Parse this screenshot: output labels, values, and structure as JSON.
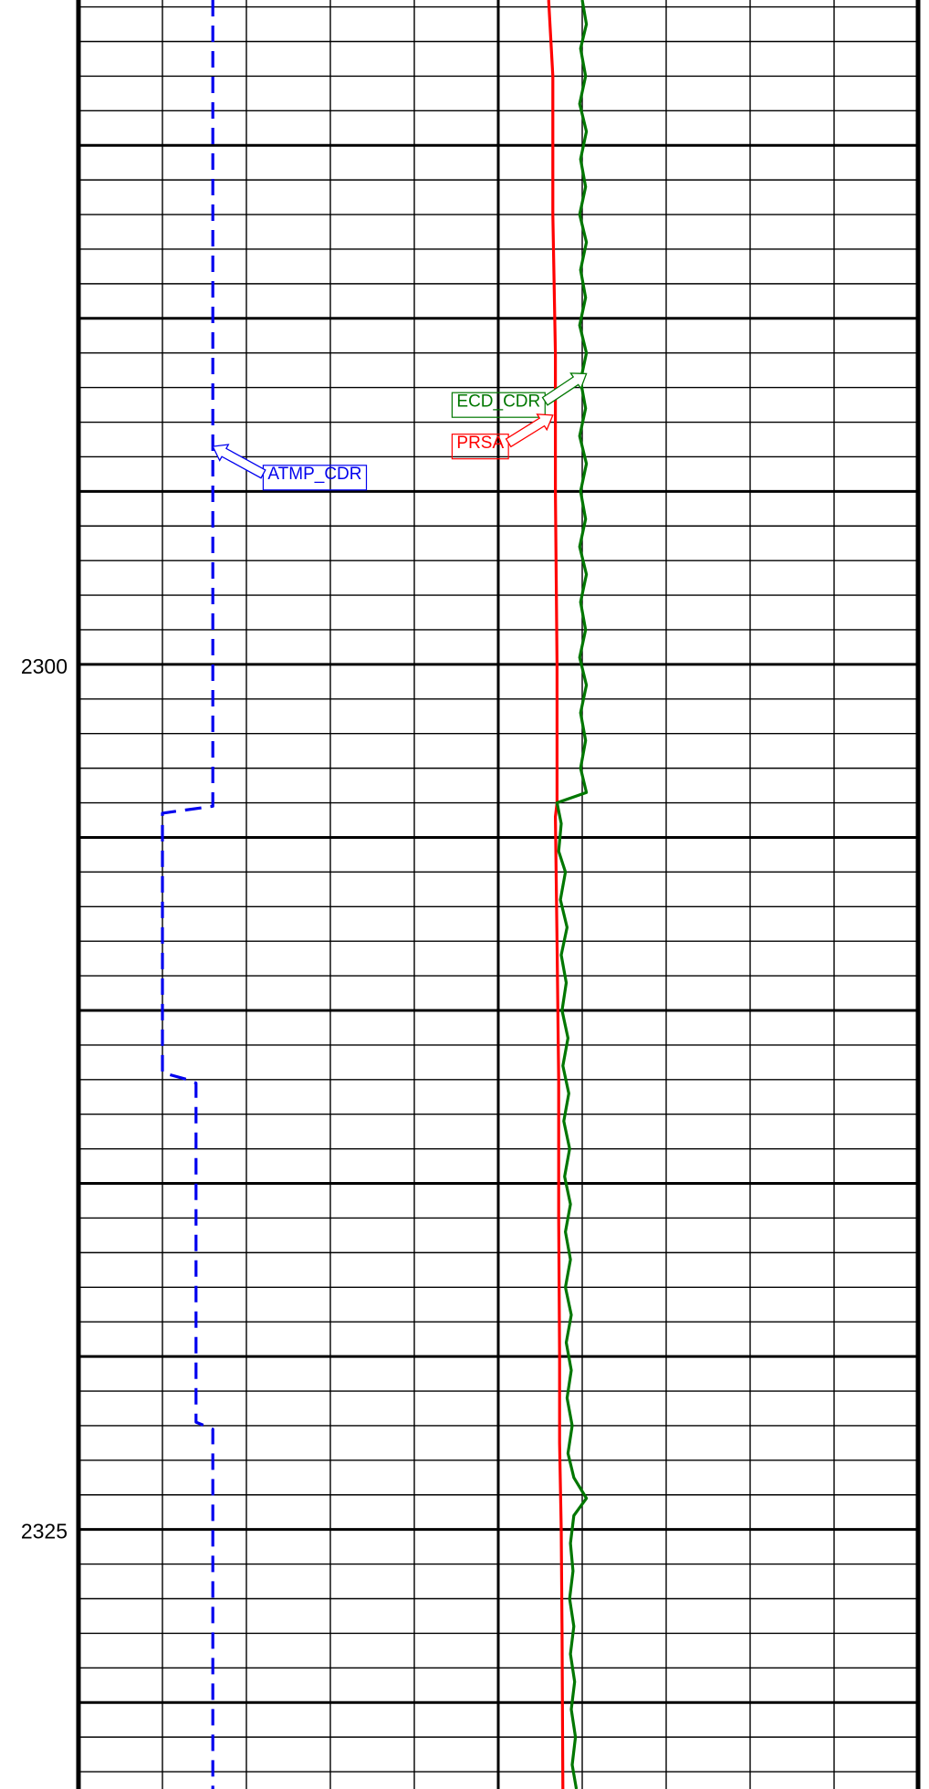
{
  "chart_data": {
    "type": "line",
    "y_axis": {
      "label": "",
      "range": [
        2280.8,
        2332.5
      ],
      "inverted": true,
      "tick_labels": [
        "2300",
        "2325"
      ],
      "tick_values": [
        2300,
        2325
      ],
      "minor_grid_step": 1,
      "major_grid_step": 5
    },
    "x_axis": {
      "label": "",
      "range": [
        0,
        10
      ],
      "divisions": 10,
      "major_divisions": [
        0,
        5,
        10
      ]
    },
    "grid": true,
    "series": [
      {
        "name": "ATMP_CDR",
        "color": "#0000ee",
        "dashed": true,
        "points": [
          [
            1.6,
            2280.8
          ],
          [
            1.6,
            2304.1
          ],
          [
            1.0,
            2304.3
          ],
          [
            1.0,
            2311.8
          ],
          [
            1.3,
            2312.0
          ],
          [
            1.4,
            2312.1
          ],
          [
            1.4,
            2321.9
          ],
          [
            1.6,
            2322.1
          ],
          [
            1.6,
            2332.5
          ]
        ]
      },
      {
        "name": "PRSA",
        "color": "#ff0000",
        "dashed": false,
        "points": [
          [
            5.6,
            2280.8
          ],
          [
            5.65,
            2283.0
          ],
          [
            5.65,
            2287.0
          ],
          [
            5.68,
            2291.0
          ],
          [
            5.68,
            2295.0
          ],
          [
            5.7,
            2300.0
          ],
          [
            5.7,
            2303.6
          ],
          [
            5.7,
            2304.0
          ],
          [
            5.68,
            2304.4
          ],
          [
            5.7,
            2308.0
          ],
          [
            5.72,
            2312.0
          ],
          [
            5.72,
            2316.0
          ],
          [
            5.73,
            2320.0
          ],
          [
            5.73,
            2322.5
          ],
          [
            5.75,
            2325.0
          ],
          [
            5.76,
            2328.0
          ],
          [
            5.77,
            2332.5
          ]
        ]
      },
      {
        "name": "ECD_CDR",
        "color": "#007700",
        "dashed": false,
        "points": [
          [
            6.0,
            2280.8
          ],
          [
            6.05,
            2281.5
          ],
          [
            5.98,
            2282.2
          ],
          [
            6.04,
            2283.0
          ],
          [
            5.97,
            2283.8
          ],
          [
            6.05,
            2284.6
          ],
          [
            5.98,
            2285.4
          ],
          [
            6.04,
            2286.2
          ],
          [
            5.97,
            2287.0
          ],
          [
            6.05,
            2287.8
          ],
          [
            5.98,
            2288.6
          ],
          [
            6.04,
            2289.4
          ],
          [
            5.97,
            2290.2
          ],
          [
            6.05,
            2291.0
          ],
          [
            5.98,
            2291.8
          ],
          [
            6.04,
            2292.6
          ],
          [
            5.97,
            2293.4
          ],
          [
            6.05,
            2294.2
          ],
          [
            5.98,
            2295.0
          ],
          [
            6.04,
            2295.8
          ],
          [
            5.97,
            2296.6
          ],
          [
            6.05,
            2297.4
          ],
          [
            5.98,
            2298.2
          ],
          [
            6.04,
            2299.0
          ],
          [
            5.97,
            2299.8
          ],
          [
            6.05,
            2300.6
          ],
          [
            5.98,
            2301.4
          ],
          [
            6.04,
            2302.2
          ],
          [
            5.98,
            2303.0
          ],
          [
            6.05,
            2303.7
          ],
          [
            5.7,
            2304.0
          ],
          [
            5.75,
            2304.6
          ],
          [
            5.72,
            2305.4
          ],
          [
            5.8,
            2306.0
          ],
          [
            5.74,
            2306.8
          ],
          [
            5.82,
            2307.6
          ],
          [
            5.75,
            2308.4
          ],
          [
            5.81,
            2309.2
          ],
          [
            5.76,
            2310.0
          ],
          [
            5.83,
            2310.8
          ],
          [
            5.77,
            2311.6
          ],
          [
            5.84,
            2312.4
          ],
          [
            5.78,
            2313.2
          ],
          [
            5.85,
            2314.0
          ],
          [
            5.79,
            2314.8
          ],
          [
            5.86,
            2315.6
          ],
          [
            5.8,
            2316.4
          ],
          [
            5.86,
            2317.2
          ],
          [
            5.8,
            2318.0
          ],
          [
            5.87,
            2318.8
          ],
          [
            5.81,
            2319.6
          ],
          [
            5.87,
            2320.4
          ],
          [
            5.82,
            2321.2
          ],
          [
            5.88,
            2322.0
          ],
          [
            5.83,
            2322.8
          ],
          [
            5.9,
            2323.5
          ],
          [
            6.05,
            2324.1
          ],
          [
            5.9,
            2324.6
          ],
          [
            5.86,
            2325.4
          ],
          [
            5.89,
            2326.2
          ],
          [
            5.85,
            2327.0
          ],
          [
            5.9,
            2327.8
          ],
          [
            5.86,
            2328.6
          ],
          [
            5.91,
            2329.4
          ],
          [
            5.87,
            2330.2
          ],
          [
            5.92,
            2331.0
          ],
          [
            5.88,
            2331.8
          ],
          [
            5.93,
            2332.5
          ]
        ]
      }
    ],
    "annotations": [
      {
        "series": "ECD_CDR",
        "text": "ECD_CDR",
        "x": 4.45,
        "y": 2292.2,
        "arrow_to": [
          6.05,
          2291.6
        ]
      },
      {
        "series": "PRSA",
        "text": "PRSA",
        "x": 4.45,
        "y": 2293.4,
        "arrow_to": [
          5.65,
          2292.8
        ]
      },
      {
        "series": "ATMP_CDR",
        "text": "ATMP_CDR",
        "x": 2.2,
        "y": 2294.3,
        "arrow_to": [
          1.6,
          2293.7
        ]
      }
    ]
  }
}
